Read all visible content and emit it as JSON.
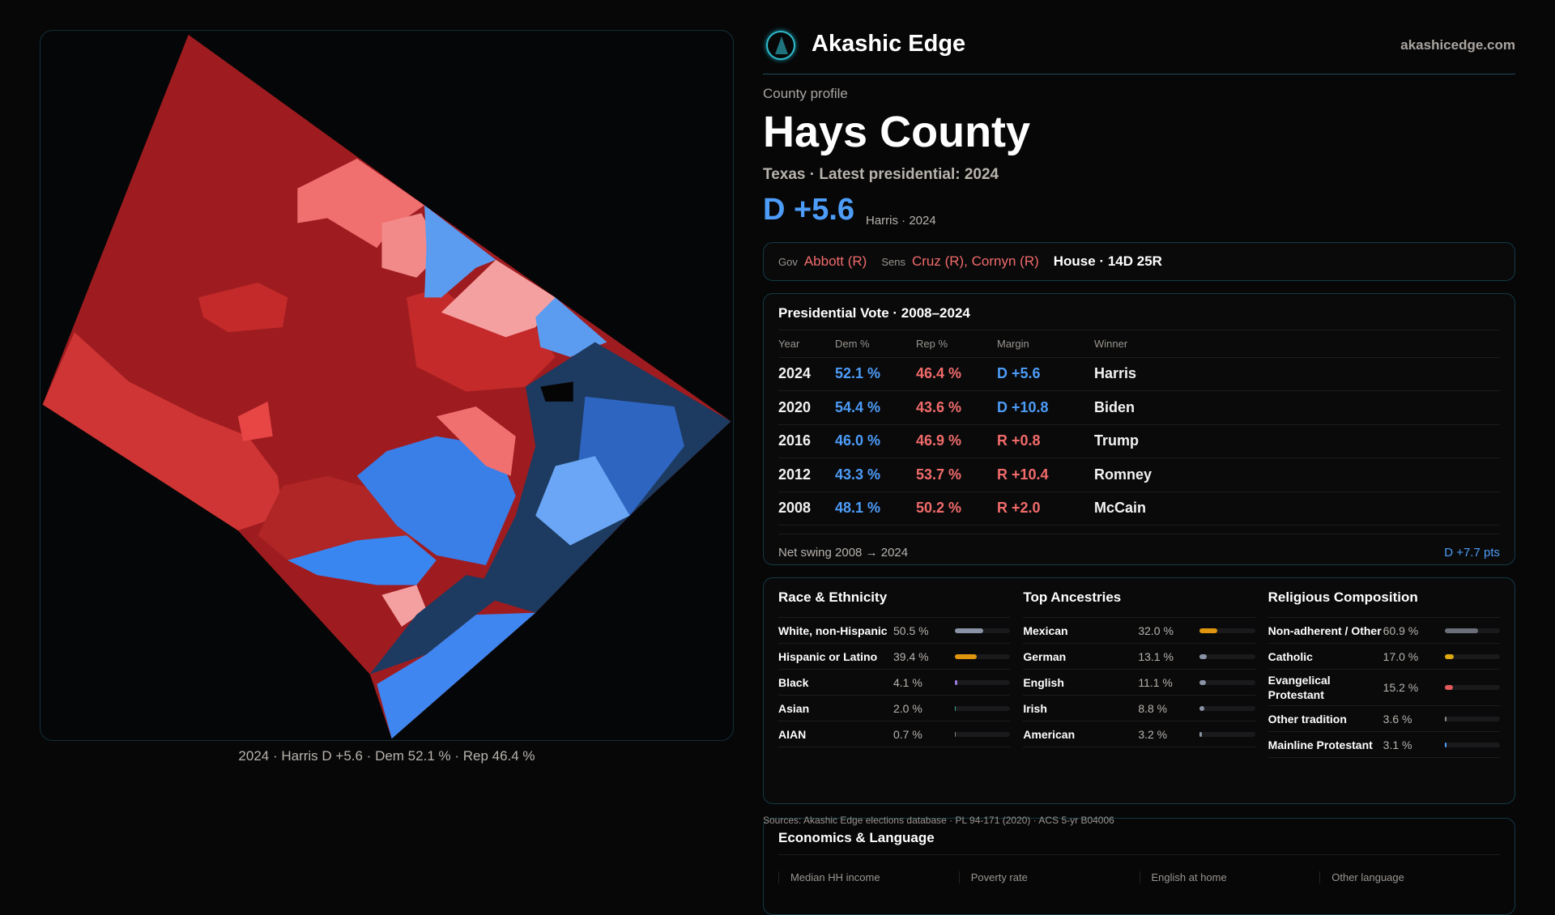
{
  "brand": {
    "name": "Akashic Edge",
    "site": "akashicedge.com",
    "logo": "akashic-logo-icon"
  },
  "profile": {
    "eyebrow": "County profile",
    "title": "Hays County",
    "subtitle": "Texas · Latest presidential: 2024",
    "margin": "D +5.6",
    "margin_sub": "Harris · 2024"
  },
  "officials": {
    "gov_label": "Gov",
    "gov": "Abbott (R)",
    "sens_label": "Sens",
    "sens": "Cruz (R), Cornyn (R)",
    "house": "House · 14D 25R"
  },
  "presidential": {
    "title": "Presidential Vote · 2008–2024",
    "headers": [
      "Year",
      "Dem %",
      "Rep %",
      "Margin",
      "Winner"
    ],
    "rows": [
      {
        "year": "2024",
        "dem": "52.1 %",
        "rep": "46.4 %",
        "margin": "D +5.6",
        "party": "D",
        "winner": "Harris"
      },
      {
        "year": "2020",
        "dem": "54.4 %",
        "rep": "43.6 %",
        "margin": "D +10.8",
        "party": "D",
        "winner": "Biden"
      },
      {
        "year": "2016",
        "dem": "46.0 %",
        "rep": "46.9 %",
        "margin": "R +0.8",
        "party": "R",
        "winner": "Trump"
      },
      {
        "year": "2012",
        "dem": "43.3 %",
        "rep": "53.7 %",
        "margin": "R +10.4",
        "party": "R",
        "winner": "Romney"
      },
      {
        "year": "2008",
        "dem": "48.1 %",
        "rep": "50.2 %",
        "margin": "R +2.0",
        "party": "R",
        "winner": "McCain"
      }
    ],
    "swing_label": "Net swing 2008 → 2024",
    "swing_value": "D +7.7 pts"
  },
  "demographics": [
    {
      "title": "Race & Ethnicity",
      "items": [
        {
          "label": "White, non-Hispanic",
          "value": "50.5 %",
          "pct": 50.5,
          "color": "#8a93a6"
        },
        {
          "label": "Hispanic or Latino",
          "value": "39.4 %",
          "pct": 39.4,
          "color": "#e0950f"
        },
        {
          "label": "Black",
          "value": "4.1 %",
          "pct": 4.1,
          "color": "#9b7ae0"
        },
        {
          "label": "Asian",
          "value": "2.0 %",
          "pct": 2.0,
          "color": "#3aa08a"
        },
        {
          "label": "AIAN",
          "value": "0.7 %",
          "pct": 0.7,
          "color": "#888"
        }
      ]
    },
    {
      "title": "Top Ancestries",
      "items": [
        {
          "label": "Mexican",
          "value": "32.0 %",
          "pct": 32.0,
          "color": "#e0950f"
        },
        {
          "label": "German",
          "value": "13.1 %",
          "pct": 13.1,
          "color": "#8a93a6"
        },
        {
          "label": "English",
          "value": "11.1 %",
          "pct": 11.1,
          "color": "#8a93a6"
        },
        {
          "label": "Irish",
          "value": "8.8 %",
          "pct": 8.8,
          "color": "#8a93a6"
        },
        {
          "label": "American",
          "value": "3.2 %",
          "pct": 3.2,
          "color": "#8a93a6"
        }
      ]
    },
    {
      "title": "Religious Composition",
      "items": [
        {
          "label": "Non-adherent / Other",
          "value": "60.9 %",
          "pct": 60.9,
          "color": "#6b6f7a"
        },
        {
          "label": "Catholic",
          "value": "17.0 %",
          "pct": 17.0,
          "color": "#e0a810"
        },
        {
          "label": "Evangelical Protestant",
          "value": "15.2 %",
          "pct": 15.2,
          "color": "#e05a5a"
        },
        {
          "label": "Other tradition",
          "value": "3.6 %",
          "pct": 3.6,
          "color": "#8a8a8a"
        },
        {
          "label": "Mainline Protestant",
          "value": "3.1 %",
          "pct": 3.1,
          "color": "#4d9cf8"
        }
      ]
    }
  ],
  "sources": "Sources: Akashic Edge elections database · PL 94-171 (2020) · ACS 5-yr B04006",
  "economics": {
    "title": "Economics & Language",
    "headers": [
      "Median HH income",
      "Poverty rate",
      "English at home",
      "Other language"
    ]
  },
  "map": {
    "caption": "2024 · Harris D +5.6 · Dem 52.1 % · Rep 46.4 %"
  },
  "colors": {
    "dem": "#4d9cf8",
    "rep": "#f26b6b",
    "border": "#133a44"
  }
}
